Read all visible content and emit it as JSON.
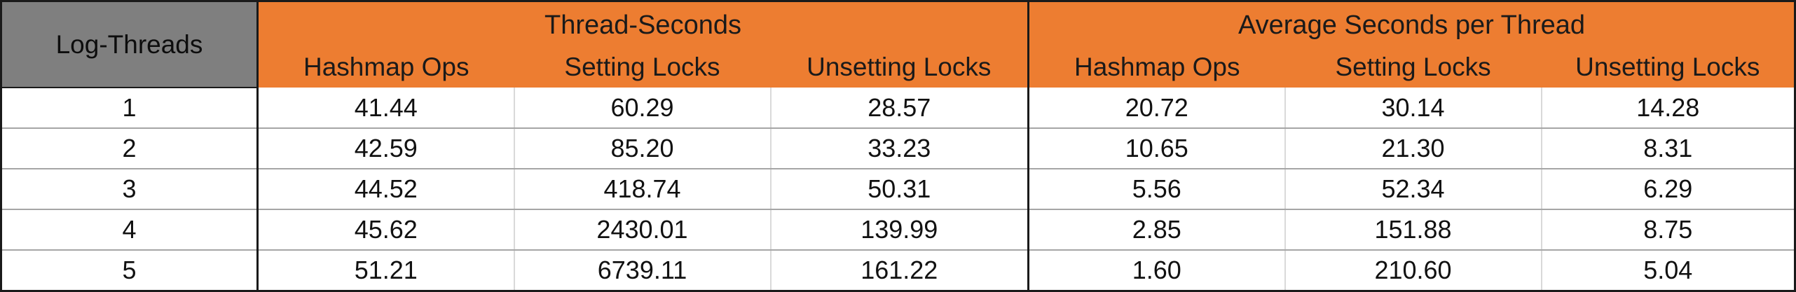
{
  "table": {
    "corner_label": "Log-Threads",
    "groups": [
      "Thread-Seconds",
      "Average Seconds per Thread"
    ],
    "subheaders": [
      "Hashmap Ops",
      "Setting Locks",
      "Unsetting Locks",
      "Hashmap Ops",
      "Setting Locks",
      "Unsetting Locks"
    ],
    "rows": [
      {
        "key": "1",
        "values": [
          "41.44",
          "60.29",
          "28.57",
          "20.72",
          "30.14",
          "14.28"
        ]
      },
      {
        "key": "2",
        "values": [
          "42.59",
          "85.20",
          "33.23",
          "10.65",
          "21.30",
          "8.31"
        ]
      },
      {
        "key": "3",
        "values": [
          "44.52",
          "418.74",
          "50.31",
          "5.56",
          "52.34",
          "6.29"
        ]
      },
      {
        "key": "4",
        "values": [
          "45.62",
          "2430.01",
          "139.99",
          "2.85",
          "151.88",
          "8.75"
        ]
      },
      {
        "key": "5",
        "values": [
          "51.21",
          "6739.11",
          "161.22",
          "1.60",
          "210.60",
          "5.04"
        ]
      }
    ],
    "colors": {
      "header_accent": "#ed7d31",
      "corner_fill": "#7f7f7f",
      "border": "#1a1a1a"
    }
  }
}
